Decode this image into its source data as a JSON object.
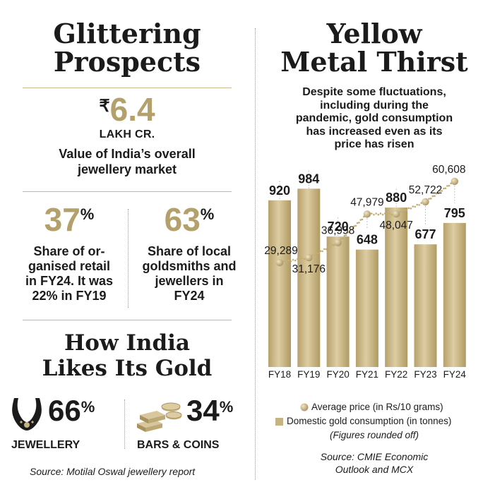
{
  "left": {
    "title_line1": "Glittering",
    "title_line2": "Prospects",
    "market": {
      "currency_symbol": "₹",
      "value": "6.4",
      "unit": "LAKH CR.",
      "desc_line1": "Value of India’s overall",
      "desc_line2": "jewellery market"
    },
    "organised": {
      "value": "37",
      "pct": "%",
      "lines": [
        "Share of or-",
        "ganised retail",
        "in FY24. It was",
        "22% in FY19"
      ]
    },
    "local": {
      "value": "63",
      "pct": "%",
      "lines": [
        "Share of local",
        "goldsmiths and",
        "jewellers in",
        "FY24"
      ]
    },
    "how_title_line1": "How India",
    "how_title_line2": "Likes Its Gold",
    "jewellery": {
      "value": "66",
      "pct": "%",
      "label": "JEWELLERY",
      "icon": "necklace-icon"
    },
    "bars_coins": {
      "value": "34",
      "pct": "%",
      "label": "BARS & COINS",
      "icon": "gold-bars-coins-icon"
    },
    "source": "Source: Motilal Oswal jewellery report"
  },
  "right": {
    "title_line1": "Yellow",
    "title_line2": "Metal Thirst",
    "subtitle_lines": [
      "Despite some fluctuations,",
      "including during the",
      "pandemic, gold consumption",
      "has increased even as its",
      "price has risen"
    ],
    "legend_price": "Average price (in Rs/10 grams)",
    "legend_consumption": "Domestic gold consumption (in tonnes)",
    "note": "(Figures rounded off)",
    "source_line1": "Source: CMIE Economic",
    "source_line2": "Outlook and MCX"
  },
  "chart_data": {
    "type": "bar",
    "title": "Yellow Metal Thirst",
    "categories": [
      "FY18",
      "FY19",
      "FY20",
      "FY21",
      "FY22",
      "FY23",
      "FY24"
    ],
    "series": [
      {
        "name": "Domestic gold consumption (in tonnes)",
        "type": "bar",
        "values": [
          920,
          984,
          720,
          648,
          880,
          677,
          795
        ],
        "labels": [
          "920",
          "984",
          "720",
          "648",
          "880",
          "677",
          "795"
        ]
      },
      {
        "name": "Average price (in Rs/10 grams)",
        "type": "line",
        "values": [
          29289,
          31176,
          36998,
          47979,
          48047,
          52722,
          60608
        ],
        "labels": [
          "29,289",
          "31,176",
          "36,998",
          "47,979",
          "48,047",
          "52,722",
          "60,608"
        ]
      }
    ],
    "bar_color": "#c6b384",
    "line_color": "#c9b37a",
    "legend": "bottom"
  }
}
